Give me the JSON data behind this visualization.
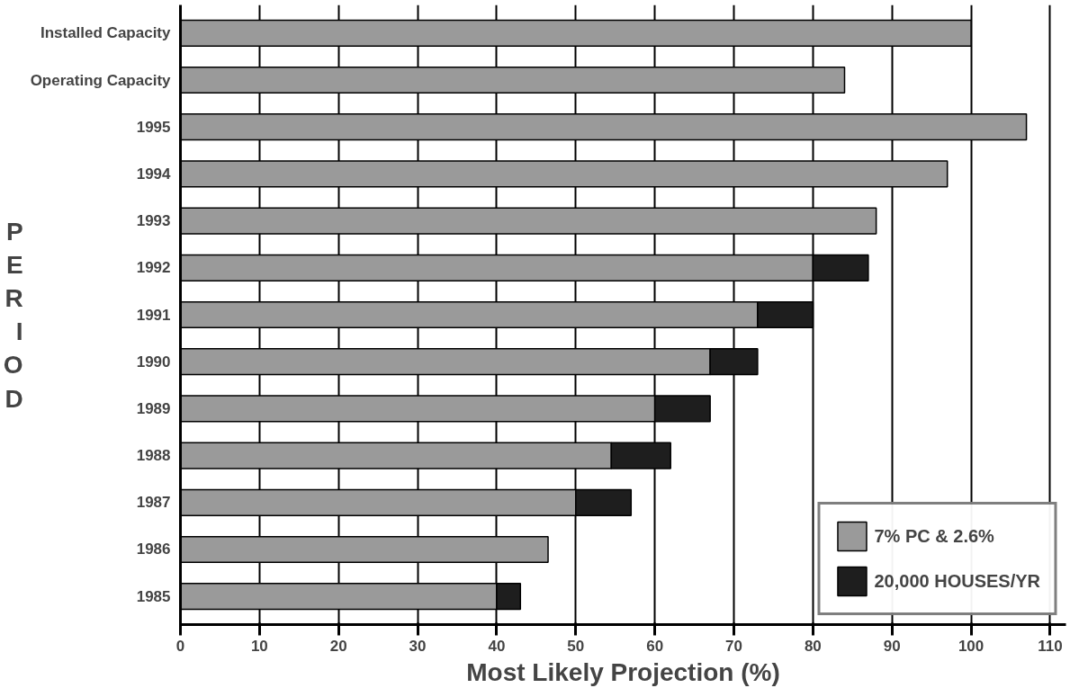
{
  "chart_data": {
    "type": "bar",
    "orientation": "horizontal",
    "stacked": true,
    "xlabel": "Most Likely Projection (%)",
    "ylabel": "PERIOD",
    "categories": [
      "Installed Capacity",
      "Operating Capacity",
      "1995",
      "1994",
      "1993",
      "1992",
      "1991",
      "1990",
      "1989",
      "1988",
      "1987",
      "1986",
      "1985"
    ],
    "series": [
      {
        "name": "7% PC & 2.6%",
        "color": "#9a9a9a",
        "values": [
          100,
          84,
          107,
          97,
          88,
          80,
          73,
          67,
          60,
          54.5,
          50,
          46.5,
          40
        ]
      },
      {
        "name": "20,000 HOUSES/YR",
        "color": "#1e1e1e",
        "values": [
          null,
          null,
          null,
          null,
          null,
          7,
          7,
          6,
          7,
          7.5,
          7,
          null,
          3
        ]
      }
    ],
    "xlim": [
      0,
      112
    ],
    "xticks": [
      0,
      10,
      20,
      30,
      40,
      50,
      60,
      70,
      80,
      90,
      100,
      110
    ],
    "grid": "x",
    "legend": "bottom right"
  }
}
